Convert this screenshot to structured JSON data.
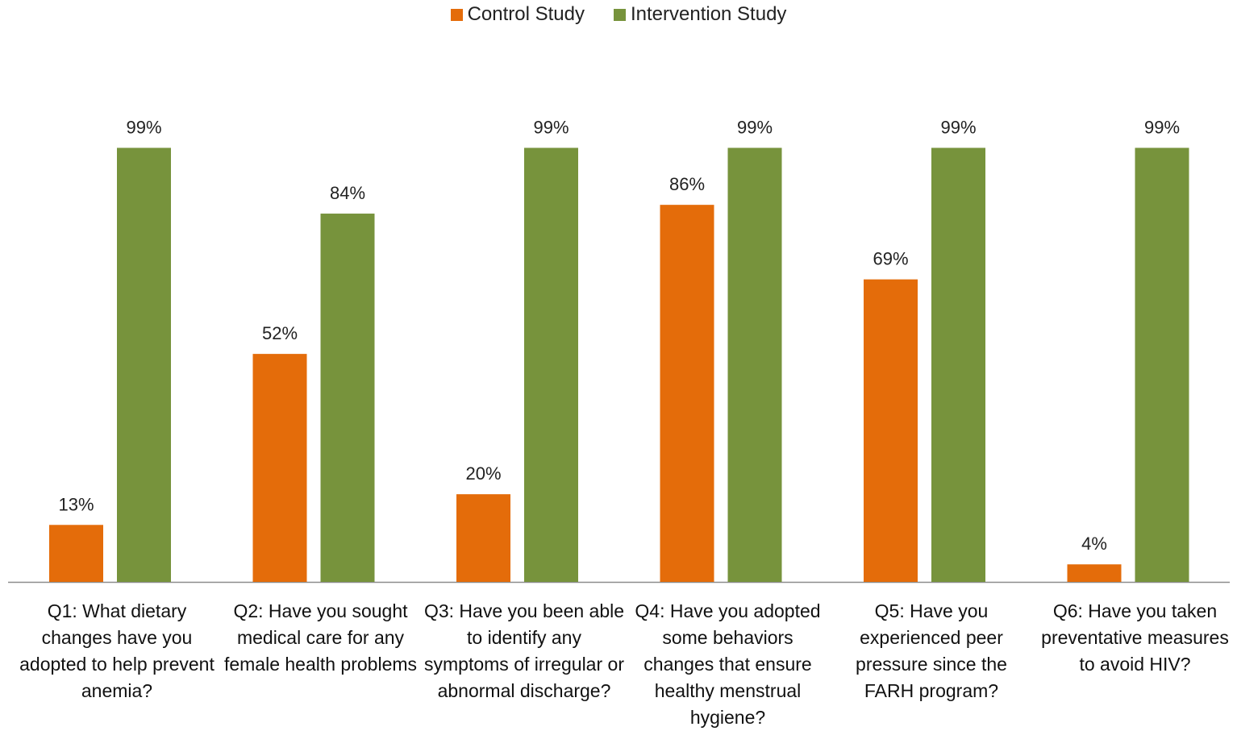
{
  "chart_data": {
    "type": "bar",
    "categories": [
      "Q1: What dietary changes have you adopted to help prevent anemia?",
      "Q2: Have you sought medical care for any female health problems",
      "Q3: Have you been able to identify any symptoms of irregular or abnormal discharge?",
      "Q4:  Have you adopted some behaviors changes  that ensure healthy menstrual hygiene?",
      "Q5: Have you experienced peer pressure since the FARH program?",
      "Q6: Have you taken preventative measures to avoid HIV?"
    ],
    "series": [
      {
        "name": "Control Study",
        "color": "#E46C0A",
        "values": [
          13,
          52,
          20,
          86,
          69,
          4
        ],
        "labels": [
          "13%",
          "52%",
          "20%",
          "86%",
          "69%",
          "4%"
        ]
      },
      {
        "name": "Intervention Study",
        "color": "#77933C",
        "values": [
          99,
          84,
          99,
          99,
          99,
          99
        ],
        "labels": [
          "99%",
          "84%",
          "99%",
          "99%",
          "99%",
          "99%"
        ]
      }
    ],
    "ylim": [
      0,
      100
    ],
    "grid": false,
    "legend": "top-center"
  }
}
